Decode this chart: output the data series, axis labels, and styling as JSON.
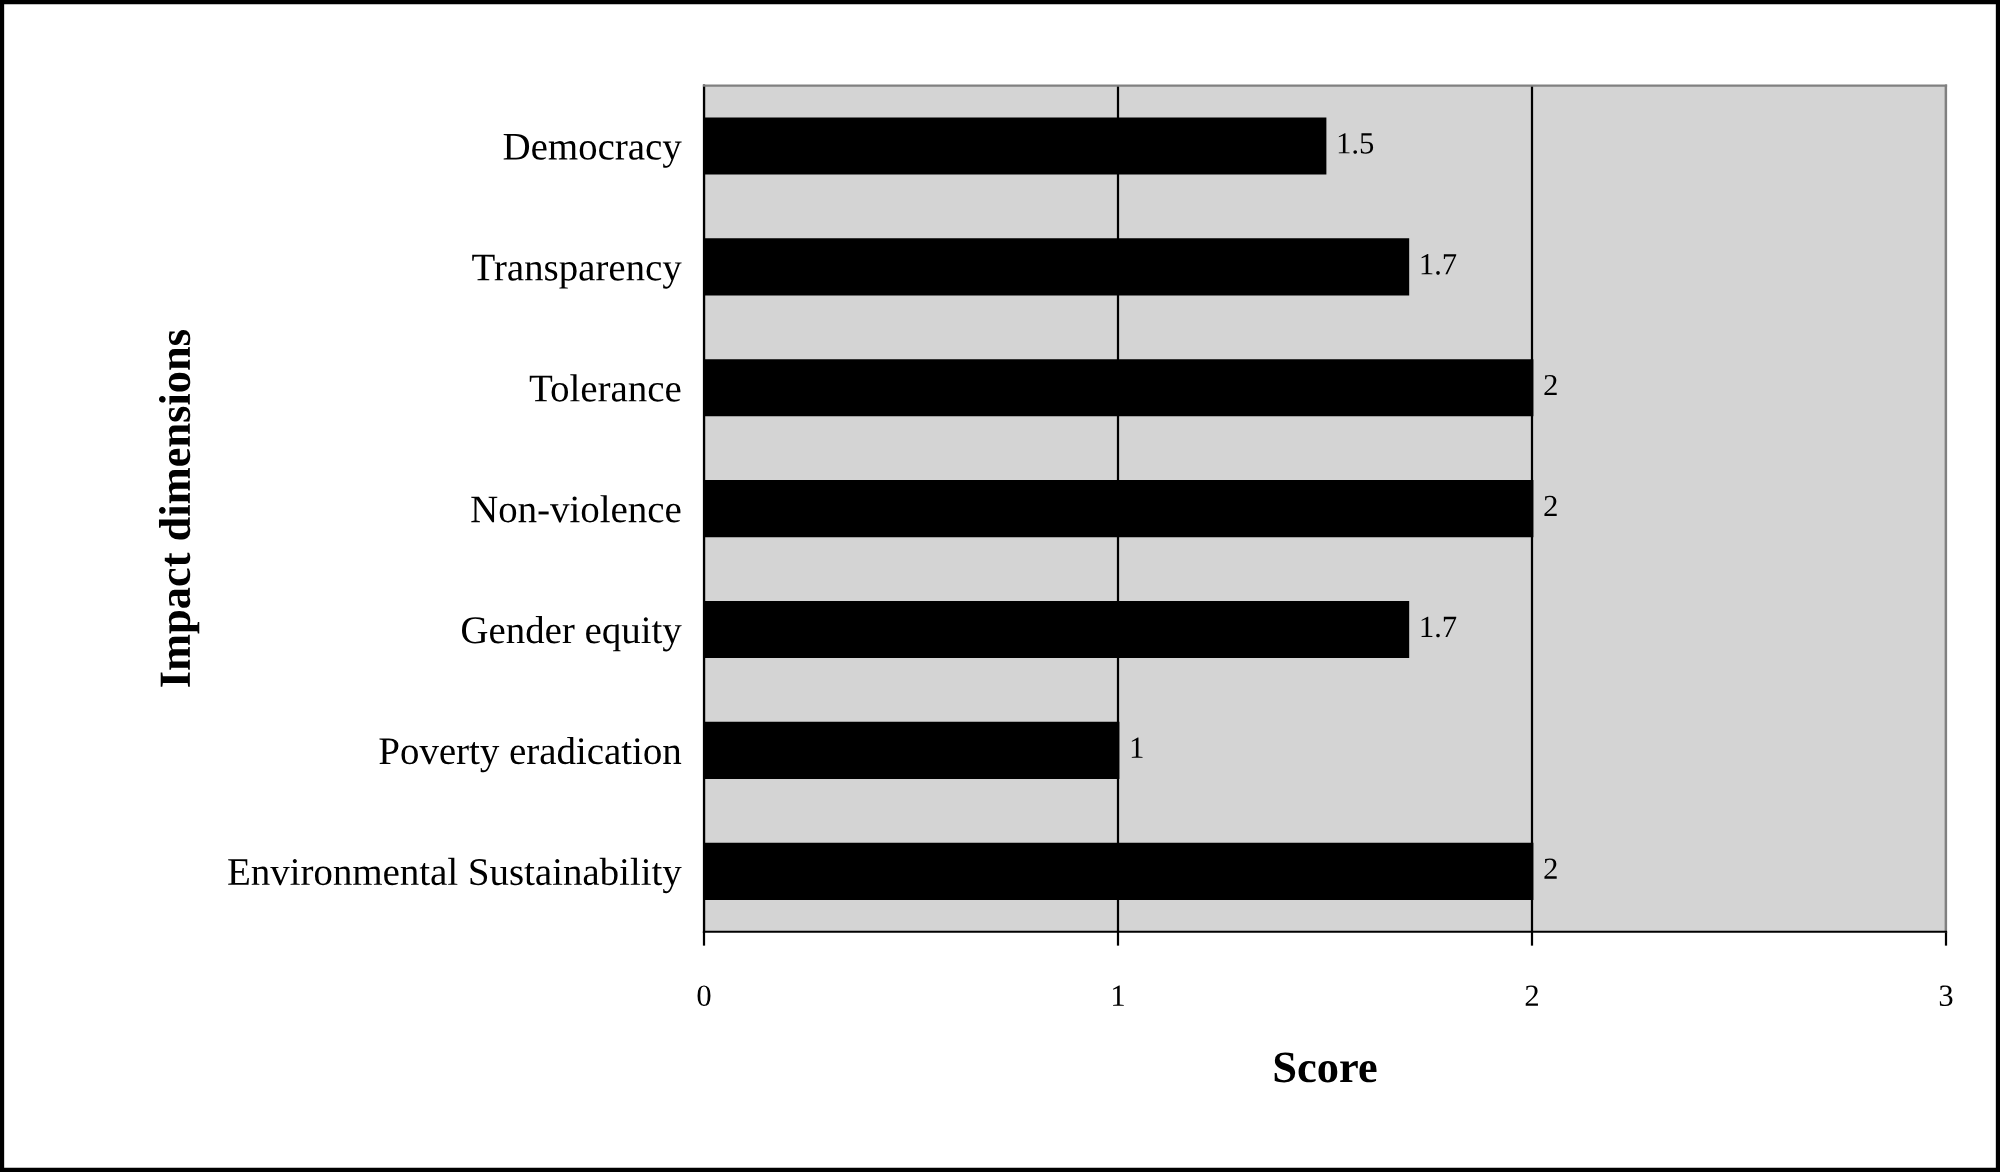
{
  "chart_data": {
    "type": "bar",
    "orientation": "horizontal",
    "xlabel": "Score",
    "ylabel": "Impact dimensions",
    "categories": [
      "Democracy",
      "Transparency",
      "Tolerance",
      "Non-violence",
      "Gender equity",
      "Poverty eradication",
      "Environmental Sustainability"
    ],
    "values": [
      1.5,
      1.7,
      2,
      2,
      1.7,
      1,
      2
    ],
    "color": "#000000",
    "data_labels": true,
    "xlim": [
      0,
      3
    ],
    "xticks": [
      0,
      1,
      2,
      3
    ],
    "grid": "x",
    "legend": false
  }
}
